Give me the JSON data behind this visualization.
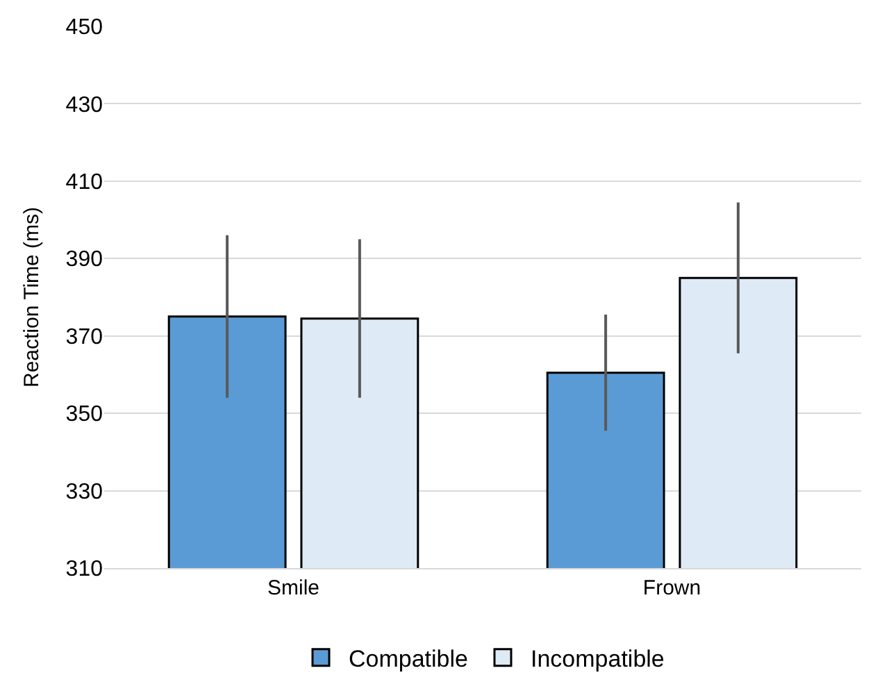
{
  "chart_data": {
    "type": "bar",
    "ylabel": "Reaction Time (ms)",
    "categories": [
      "Smile",
      "Frown"
    ],
    "series": [
      {
        "name": "Compatible",
        "color": "#5b9bd5",
        "values": [
          375,
          360.5
        ],
        "errors": [
          21,
          15
        ]
      },
      {
        "name": "Incompatible",
        "color": "#deebf7",
        "values": [
          374.5,
          385
        ],
        "errors": [
          20.5,
          19.5
        ]
      }
    ],
    "ylim": [
      310,
      450
    ],
    "yticks": [
      310,
      330,
      350,
      370,
      390,
      410,
      430,
      450
    ],
    "grid": "y",
    "legend": "bottom"
  }
}
